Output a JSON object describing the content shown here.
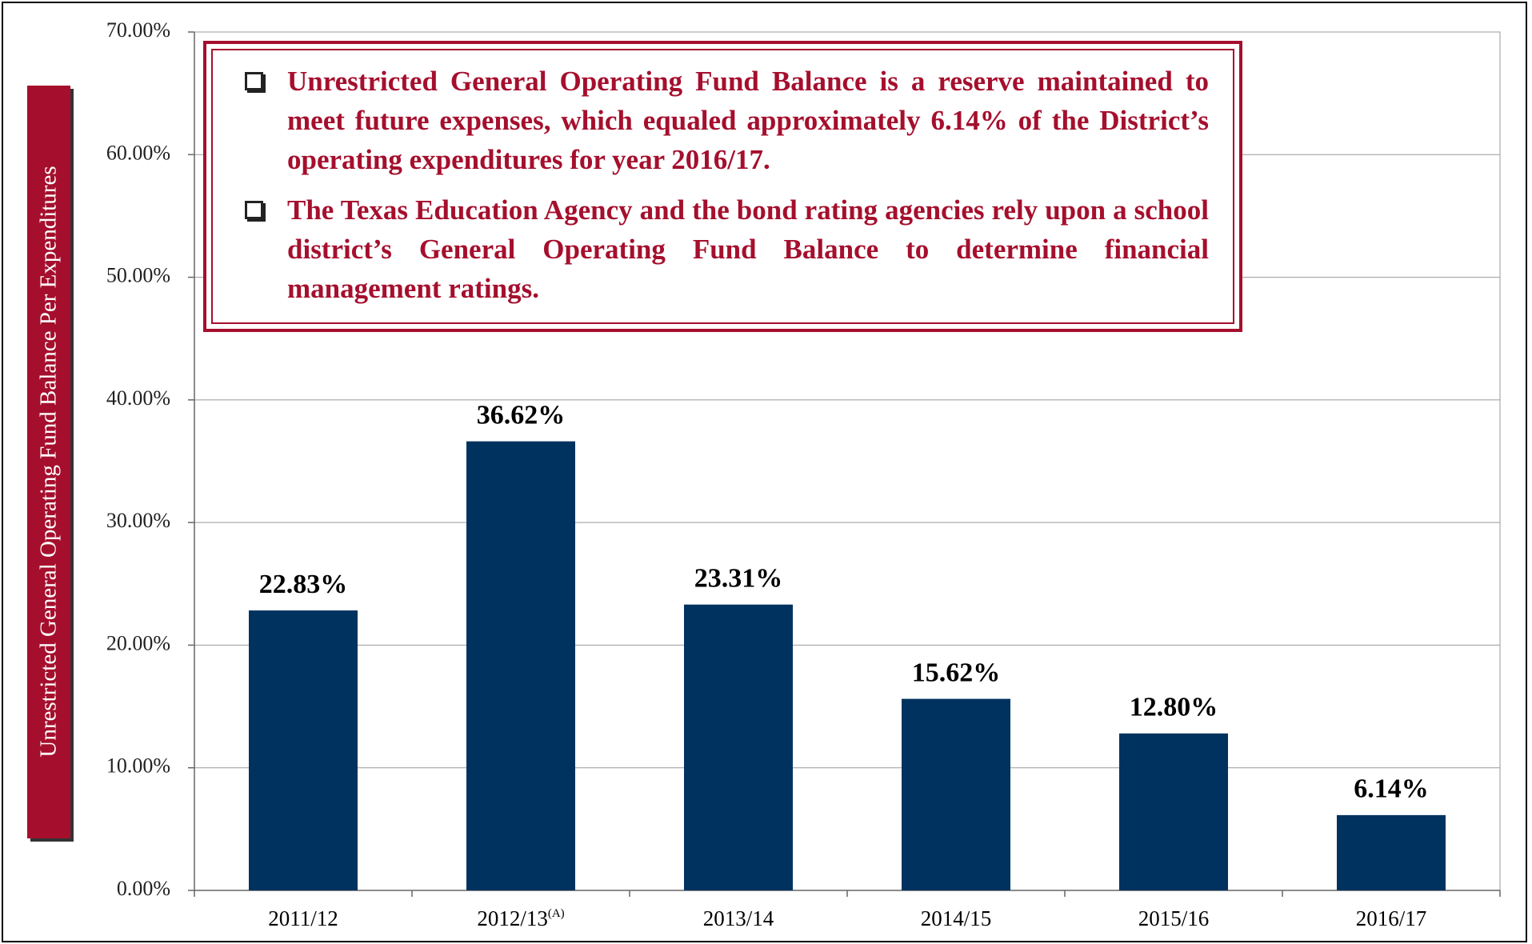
{
  "chart_data": {
    "type": "bar",
    "y_label": "Unrestricted General Operating Fund Balance Per Expenditures",
    "notes": [
      "Unrestricted General Operating Fund Balance is a reserve maintained to meet future expenses, which equaled approximately 6.14% of the District’s operating expenditures for year 2016/17.",
      "The Texas Education Agency and the bond rating agencies rely upon a school district’s General Operating Fund Balance to determine financial management ratings."
    ],
    "categories": [
      "2011/12",
      "2012/13",
      "2013/14",
      "2014/15",
      "2015/16",
      "2016/17"
    ],
    "x_label_superscripts": [
      null,
      "(A)",
      null,
      null,
      null,
      null
    ],
    "values": [
      22.83,
      36.62,
      23.31,
      15.62,
      12.8,
      6.14
    ],
    "value_labels": [
      "22.83%",
      "36.62%",
      "23.31%",
      "15.62%",
      "12.80%",
      "6.14%"
    ],
    "color": "#00325f",
    "ylim": [
      0,
      70
    ],
    "yticks": [
      {
        "value": 0,
        "label": "0.00%"
      },
      {
        "value": 10,
        "label": "10.00%"
      },
      {
        "value": 20,
        "label": "20.00%"
      },
      {
        "value": 30,
        "label": "30.00%"
      },
      {
        "value": 40,
        "label": "40.00%"
      },
      {
        "value": 50,
        "label": "50.00%"
      },
      {
        "value": 60,
        "label": "60.00%"
      },
      {
        "value": 70,
        "label": "70.00%"
      }
    ],
    "grid": true
  }
}
